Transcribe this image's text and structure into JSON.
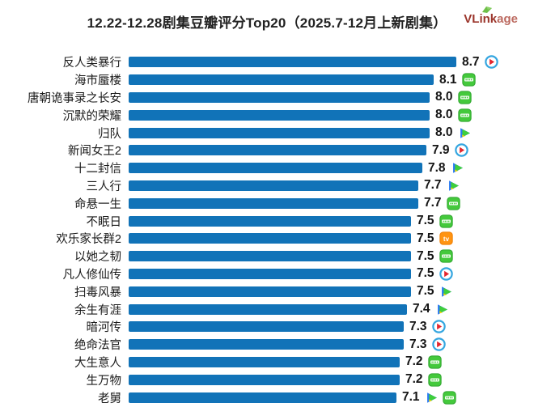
{
  "header": {
    "title": "12.22-12.28剧集豆瓣评分Top20（2025.7-12月上新剧集）",
    "logo": {
      "text_bold": "VLink",
      "text_light": "age",
      "color_bold": "#9b352b",
      "color_light": "#bc6a60",
      "leaf_color": "#6fbf4a"
    }
  },
  "chart_data": {
    "type": "bar",
    "orientation": "horizontal",
    "title": "12.22-12.28剧集豆瓣评分Top20（2025.7-12月上新剧集）",
    "xlabel": "",
    "ylabel": "",
    "axis_min": 0,
    "axis_max": 8.7,
    "grid": false,
    "legend": "none",
    "bar_color": "#1173b8",
    "categories": [
      "反人类暴行",
      "海市蜃楼",
      "唐朝诡事录之长安",
      "沉默的荣耀",
      "归队",
      "新闻女王2",
      "十二封信",
      "三人行",
      "命悬一生",
      "不眠日",
      "欢乐家长群2",
      "以她之韧",
      "凡人修仙传",
      "扫毒风暴",
      "余生有涯",
      "暗河传",
      "绝命法官",
      "大生意人",
      "生万物",
      "老舅"
    ],
    "values": [
      8.7,
      8.1,
      8.0,
      8.0,
      8.0,
      7.9,
      7.8,
      7.7,
      7.7,
      7.5,
      7.5,
      7.5,
      7.5,
      7.5,
      7.4,
      7.3,
      7.3,
      7.2,
      7.2,
      7.1
    ],
    "value_labels": [
      "8.7",
      "8.1",
      "8.0",
      "8.0",
      "8.0",
      "7.9",
      "7.8",
      "7.7",
      "7.7",
      "7.5",
      "7.5",
      "7.5",
      "7.5",
      "7.5",
      "7.4",
      "7.3",
      "7.3",
      "7.2",
      "7.2",
      "7.1"
    ],
    "platforms": [
      [
        "youku"
      ],
      [
        "iqiyi"
      ],
      [
        "iqiyi"
      ],
      [
        "iqiyi"
      ],
      [
        "tencent-video"
      ],
      [
        "youku"
      ],
      [
        "tencent-video"
      ],
      [
        "tencent-video"
      ],
      [
        "iqiyi"
      ],
      [
        "iqiyi"
      ],
      [
        "mgtv"
      ],
      [
        "iqiyi"
      ],
      [
        "youku"
      ],
      [
        "tencent-video"
      ],
      [
        "tencent-video"
      ],
      [
        "youku"
      ],
      [
        "youku"
      ],
      [
        "iqiyi"
      ],
      [
        "iqiyi"
      ],
      [
        "tencent-video",
        "iqiyi"
      ]
    ],
    "platform_colors": {
      "youku_ring": "#35a6e0",
      "youku_arrow": "#e4252e",
      "tencent_blue": "#2b7bf3",
      "tencent_green": "#3fcf3a",
      "tencent_yellow": "#ffd400",
      "iqiyi_green": "#44c93c",
      "mgtv_orange": "#ff9412"
    }
  }
}
